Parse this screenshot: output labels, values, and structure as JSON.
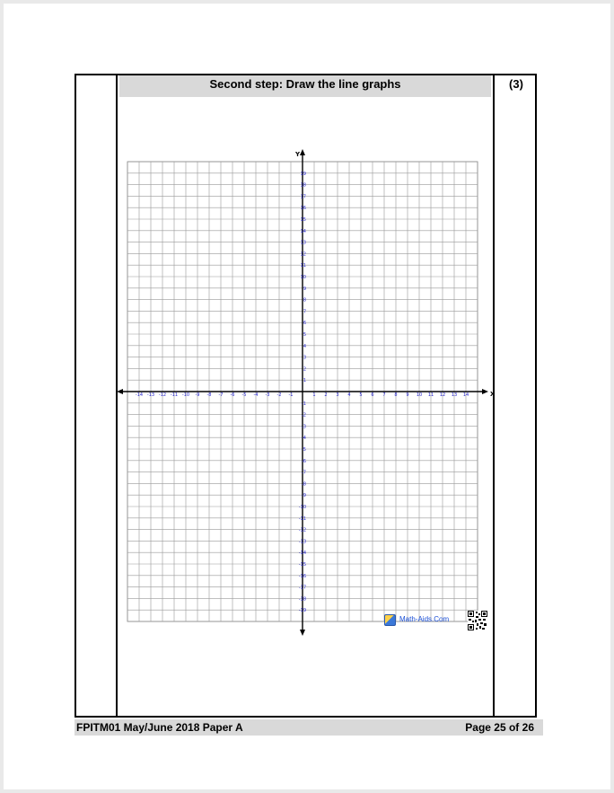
{
  "title": "Second step: Draw the line graphs",
  "marks": "(3)",
  "footer": {
    "left": "FPITM01 May/June 2018 Paper A",
    "right": "Page 25 of 26"
  },
  "branding": {
    "text": "Math-Aids.Com",
    "icon": "math-aids-logo-icon"
  },
  "qr_code": "qr-code-icon",
  "graph": {
    "x_label": "X",
    "y_label": "Y",
    "x_range": [
      -14,
      14
    ],
    "y_range": [
      -19,
      19
    ],
    "grid": true,
    "tick_color": "#2222cc"
  }
}
